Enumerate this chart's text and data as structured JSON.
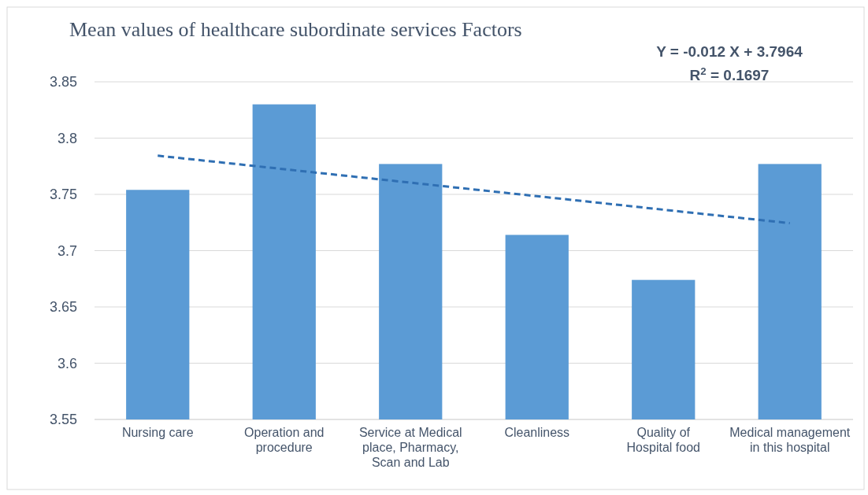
{
  "chart_data": {
    "type": "bar",
    "title": "Mean values of healthcare subordinate services Factors",
    "categories": [
      "Nursing care",
      "Operation and procedure",
      "Service at Medical place, Pharmacy, Scan and Lab",
      "Cleanliness",
      "Quality of Hospital food",
      "Medical management in this hospital"
    ],
    "series": [
      {
        "color": "#5b9bd5",
        "values": [
          3.754,
          3.83,
          3.777,
          3.714,
          3.674,
          3.777
        ]
      },
      {
        "type": "line",
        "color": "#2f6fb3",
        "line_style": "dashed",
        "values": [
          3.7844,
          3.7724,
          3.7604,
          3.7484,
          3.7364,
          3.7244
        ]
      }
    ],
    "ylim": [
      3.55,
      3.85
    ],
    "yticks": [
      3.55,
      3.6,
      3.65,
      3.7,
      3.75,
      3.8,
      3.85
    ],
    "grid": "y",
    "annotations": [
      "Y = -0.012 X + 3.7964",
      "R$^{2}$ = 0.1697"
    ]
  }
}
